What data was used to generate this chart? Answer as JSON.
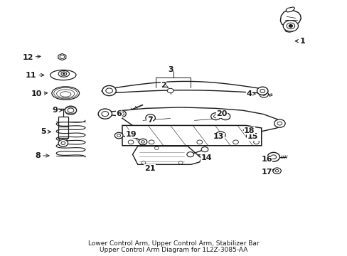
{
  "bg_color": "#ffffff",
  "line_color": "#1a1a1a",
  "title1": "Lower Control Arm, Upper Control Arm, Stabilizer Bar",
  "title2": "Upper Control Arm Diagram for 1L2Z-3085-AA",
  "fontsize_label": 8,
  "fontsize_title": 6.5,
  "label_positions": {
    "1": [
      0.875,
      0.845,
      0.845,
      0.845
    ],
    "2": [
      0.47,
      0.67,
      0.49,
      0.655
    ],
    "3": [
      0.49,
      0.73,
      0.49,
      0.72
    ],
    "4": [
      0.72,
      0.635,
      0.745,
      0.635
    ],
    "5": [
      0.12,
      0.485,
      0.15,
      0.485
    ],
    "6": [
      0.34,
      0.555,
      0.34,
      0.562
    ],
    "7": [
      0.43,
      0.53,
      0.43,
      0.542
    ],
    "8": [
      0.105,
      0.39,
      0.145,
      0.39
    ],
    "9": [
      0.155,
      0.57,
      0.183,
      0.57
    ],
    "10": [
      0.1,
      0.635,
      0.14,
      0.64
    ],
    "11": [
      0.085,
      0.71,
      0.13,
      0.71
    ],
    "12": [
      0.075,
      0.78,
      0.12,
      0.785
    ],
    "13": [
      0.63,
      0.465,
      0.635,
      0.475
    ],
    "14": [
      0.595,
      0.38,
      0.57,
      0.395
    ],
    "15": [
      0.73,
      0.465,
      0.723,
      0.47
    ],
    "16": [
      0.77,
      0.375,
      0.78,
      0.388
    ],
    "17": [
      0.77,
      0.325,
      0.793,
      0.335
    ],
    "18": [
      0.72,
      0.49,
      0.7,
      0.492
    ],
    "19": [
      0.375,
      0.475,
      0.385,
      0.468
    ],
    "20": [
      0.64,
      0.555,
      0.64,
      0.543
    ],
    "21": [
      0.43,
      0.34,
      0.43,
      0.355
    ]
  }
}
